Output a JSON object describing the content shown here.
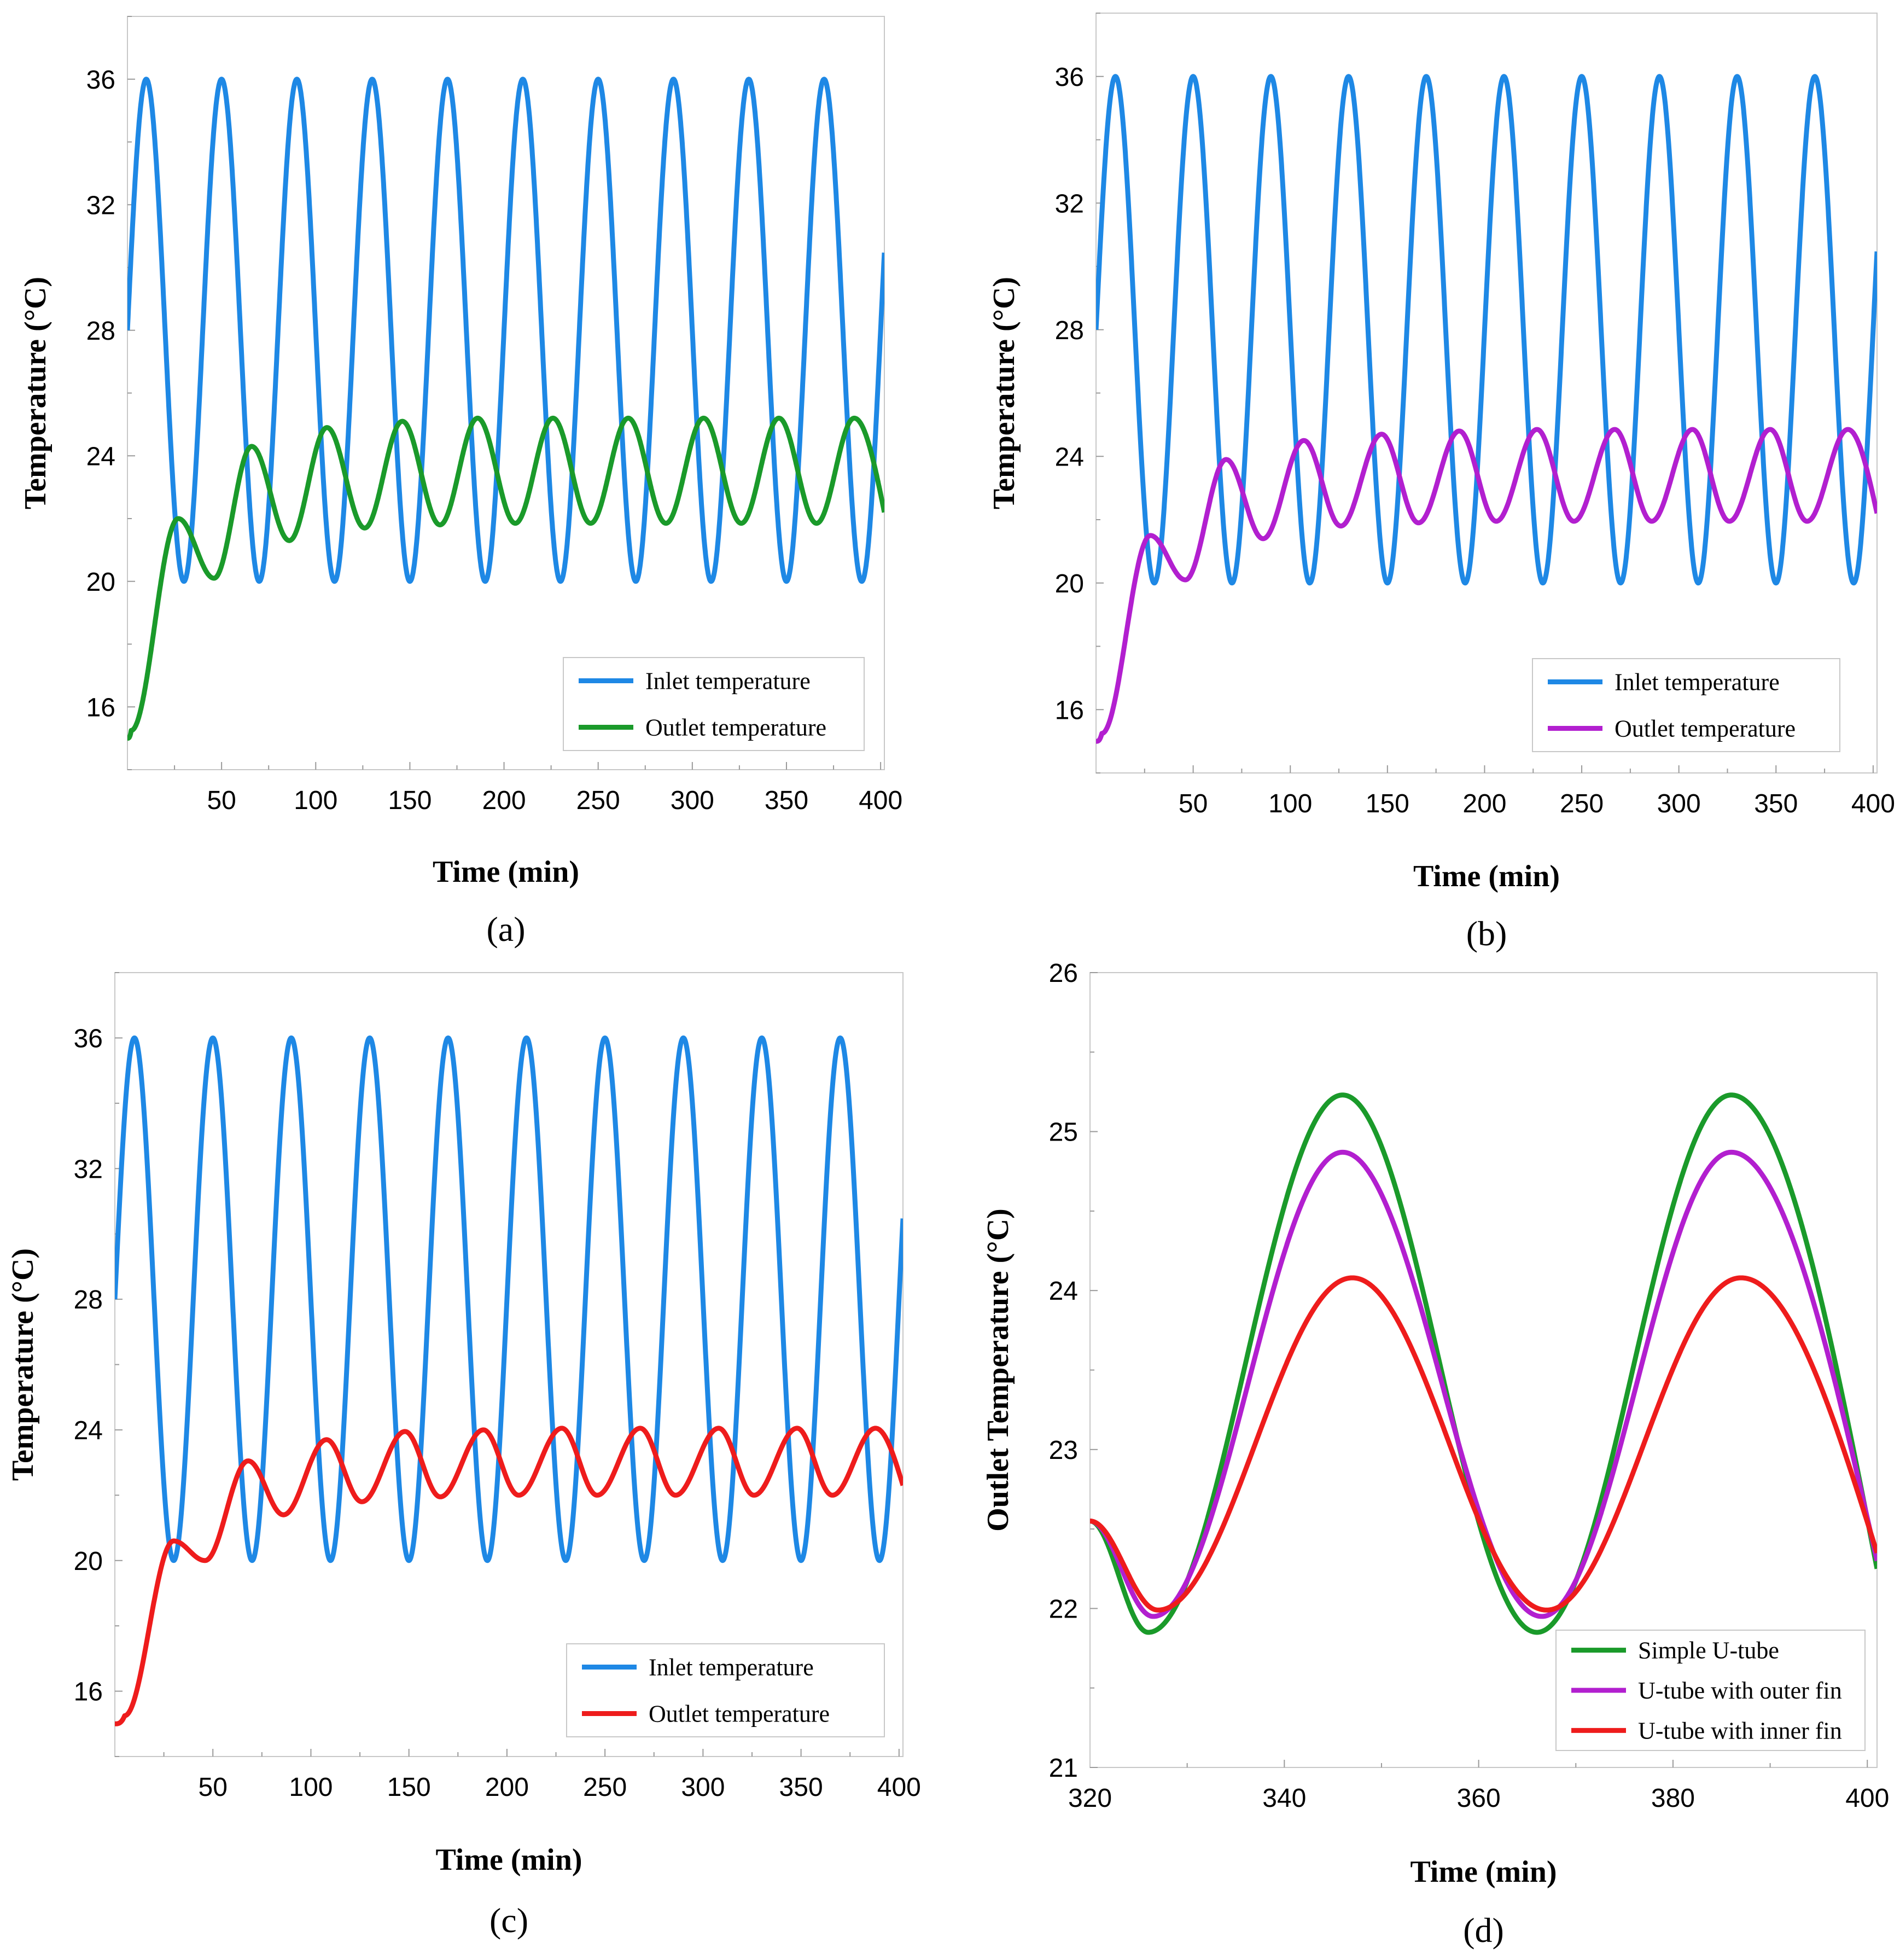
{
  "chart_data": [
    {
      "type": "line",
      "panel_label": "(a)",
      "title": "",
      "xlabel": "Time (min)",
      "ylabel": "Temperature (°C)",
      "xlim": [
        0,
        402
      ],
      "ylim": [
        14,
        38
      ],
      "x_ticks": [
        50,
        100,
        150,
        200,
        250,
        300,
        350,
        400
      ],
      "y_ticks": [
        16,
        20,
        24,
        28,
        32,
        36
      ],
      "legend_position": "bottom-right",
      "series": [
        {
          "name": "Inlet temperature",
          "color": "#1e88e5",
          "model": {
            "kind": "inlet",
            "mean": 28,
            "amplitude": 8,
            "period": 40,
            "phase_peak": 10,
            "x_start": 0,
            "x_end": 402
          }
        },
        {
          "name": "Outlet temperature",
          "color": "#1a9a2a",
          "model": {
            "kind": "outlet",
            "start": 15,
            "ramp_end": 27,
            "peaks": [
              [
                27,
                22.0
              ],
              [
                66,
                24.3
              ],
              [
                106,
                24.9
              ],
              [
                146,
                25.1
              ],
              [
                186,
                25.2
              ],
              [
                226,
                25.2
              ],
              [
                266,
                25.2
              ],
              [
                306,
                25.2
              ],
              [
                346,
                25.2
              ],
              [
                386,
                25.2
              ]
            ],
            "troughs": [
              [
                46,
                20.1
              ],
              [
                86,
                21.3
              ],
              [
                126,
                21.7
              ],
              [
                166,
                21.8
              ],
              [
                206,
                21.85
              ],
              [
                246,
                21.85
              ],
              [
                286,
                21.85
              ],
              [
                326,
                21.85
              ],
              [
                366,
                21.85
              ]
            ],
            "end": [
              402,
              22.2
            ]
          }
        }
      ]
    },
    {
      "type": "line",
      "panel_label": "(b)",
      "title": "",
      "xlabel": "Time (min)",
      "ylabel": "Temperature (°C)",
      "xlim": [
        0,
        402
      ],
      "ylim": [
        14,
        38
      ],
      "x_ticks": [
        50,
        100,
        150,
        200,
        250,
        300,
        350,
        400
      ],
      "y_ticks": [
        16,
        20,
        24,
        28,
        32,
        36
      ],
      "legend_position": "bottom-right",
      "series": [
        {
          "name": "Inlet temperature",
          "color": "#1e88e5",
          "model": {
            "kind": "inlet",
            "mean": 28,
            "amplitude": 8,
            "period": 40,
            "phase_peak": 10,
            "x_start": 0,
            "x_end": 402
          }
        },
        {
          "name": "Outlet temperature",
          "color": "#b21fcf",
          "model": {
            "kind": "outlet",
            "start": 15,
            "ramp_end": 28,
            "peaks": [
              [
                28,
                21.5
              ],
              [
                67,
                23.9
              ],
              [
                107,
                24.5
              ],
              [
                147,
                24.7
              ],
              [
                187,
                24.8
              ],
              [
                227,
                24.85
              ],
              [
                267,
                24.85
              ],
              [
                307,
                24.85
              ],
              [
                347,
                24.85
              ],
              [
                387,
                24.85
              ]
            ],
            "troughs": [
              [
                46,
                20.1
              ],
              [
                86,
                21.4
              ],
              [
                126,
                21.8
              ],
              [
                166,
                21.9
              ],
              [
                206,
                21.95
              ],
              [
                246,
                21.95
              ],
              [
                286,
                21.95
              ],
              [
                326,
                21.95
              ],
              [
                366,
                21.95
              ]
            ],
            "end": [
              402,
              22.2
            ]
          }
        }
      ]
    },
    {
      "type": "line",
      "panel_label": "(c)",
      "title": "",
      "xlabel": "Time (min)",
      "ylabel": "Temperature (°C)",
      "xlim": [
        0,
        402
      ],
      "ylim": [
        14,
        38
      ],
      "x_ticks": [
        50,
        100,
        150,
        200,
        250,
        300,
        350,
        400
      ],
      "y_ticks": [
        16,
        20,
        24,
        28,
        32,
        36
      ],
      "legend_position": "bottom-right",
      "series": [
        {
          "name": "Inlet temperature",
          "color": "#1e88e5",
          "model": {
            "kind": "inlet",
            "mean": 28,
            "amplitude": 8,
            "period": 40,
            "phase_peak": 10,
            "x_start": 0,
            "x_end": 402
          }
        },
        {
          "name": "Outlet temperature",
          "color": "#ee1c1c",
          "model": {
            "kind": "outlet",
            "start": 15,
            "ramp_end": 30,
            "peaks": [
              [
                30,
                20.6
              ],
              [
                68,
                23.05
              ],
              [
                108,
                23.7
              ],
              [
                148,
                23.95
              ],
              [
                188,
                24.0
              ],
              [
                228,
                24.05
              ],
              [
                268,
                24.05
              ],
              [
                308,
                24.05
              ],
              [
                348,
                24.05
              ],
              [
                388,
                24.05
              ]
            ],
            "troughs": [
              [
                46,
                20.0
              ],
              [
                86,
                21.4
              ],
              [
                126,
                21.8
              ],
              [
                166,
                21.95
              ],
              [
                206,
                22.0
              ],
              [
                246,
                22.0
              ],
              [
                286,
                22.0
              ],
              [
                326,
                22.0
              ],
              [
                366,
                22.0
              ]
            ],
            "end": [
              402,
              22.3
            ]
          }
        }
      ]
    },
    {
      "type": "line",
      "panel_label": "(d)",
      "title": "",
      "xlabel": "Time (min)",
      "ylabel": "Outlet Temperature (°C)",
      "xlim": [
        320,
        401
      ],
      "ylim": [
        21,
        26
      ],
      "x_ticks": [
        320,
        340,
        360,
        380,
        400
      ],
      "y_ticks": [
        21,
        22,
        23,
        24,
        25,
        26
      ],
      "legend_position": "bottom-right",
      "series": [
        {
          "name": "Simple U-tube",
          "color": "#1a9a2a",
          "model": {
            "kind": "outlet",
            "start": 22.55,
            "ramp_end": 320,
            "peaks": [
              [
                346,
                25.23
              ],
              [
                386,
                25.23
              ]
            ],
            "troughs": [
              [
                326,
                21.85
              ],
              [
                366,
                21.85
              ]
            ],
            "end": [
              401,
              22.25
            ]
          }
        },
        {
          "name": "U-tube with outer fin",
          "color": "#b21fcf",
          "model": {
            "kind": "outlet",
            "start": 22.55,
            "ramp_end": 320,
            "peaks": [
              [
                346,
                24.87
              ],
              [
                386,
                24.87
              ]
            ],
            "troughs": [
              [
                326.5,
                21.95
              ],
              [
                366.5,
                21.95
              ]
            ],
            "end": [
              401,
              22.3
            ]
          }
        },
        {
          "name": "U-tube with inner fin",
          "color": "#ee1c1c",
          "model": {
            "kind": "outlet",
            "start": 22.55,
            "ramp_end": 320,
            "peaks": [
              [
                347,
                24.08
              ],
              [
                387,
                24.08
              ]
            ],
            "troughs": [
              [
                327,
                21.99
              ],
              [
                367,
                21.99
              ]
            ],
            "end": [
              401,
              22.35
            ]
          }
        }
      ]
    }
  ]
}
